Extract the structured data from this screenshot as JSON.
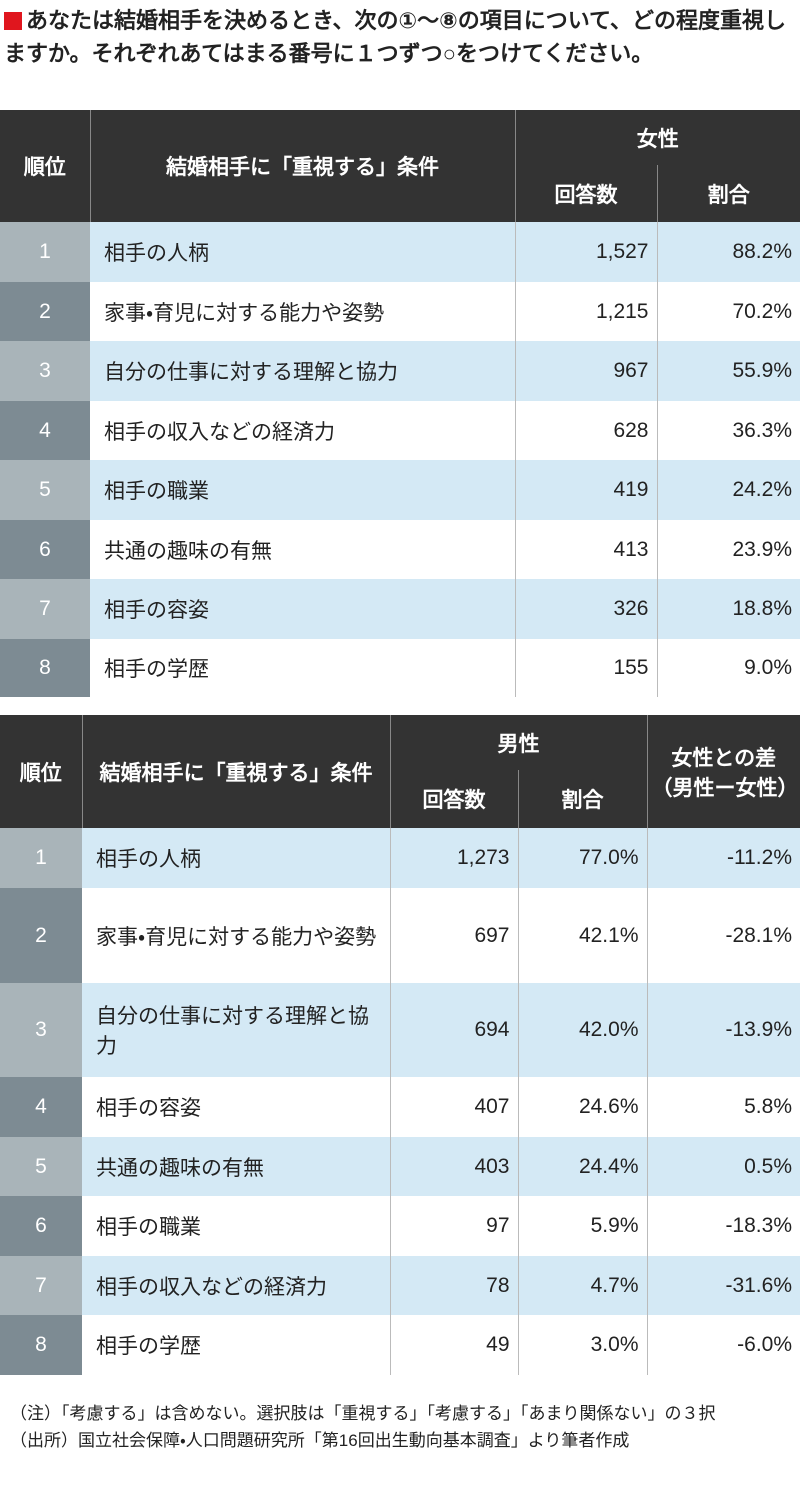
{
  "header": {
    "title": "あなたは結婚相手を決めるとき、次の①～⑧の項目について、どの程度重視しますか。それぞれあてはまる番号に１つずつ○をつけてください。"
  },
  "table1": {
    "head": {
      "rank": "順位",
      "condition": "結婚相手に「重視する」条件",
      "group": "女性",
      "count": "回答数",
      "ratio": "割合"
    },
    "rows": [
      [
        "1",
        "相手の人柄",
        "1,527",
        "88.2%"
      ],
      [
        "2",
        "家事・育児に対する能力や姿勢",
        "1,215",
        "70.2%"
      ],
      [
        "3",
        "自分の仕事に対する理解と協力",
        "967",
        "55.9%"
      ],
      [
        "4",
        "相手の収入などの経済力",
        "628",
        "36.3%"
      ],
      [
        "5",
        "相手の職業",
        "419",
        "24.2%"
      ],
      [
        "6",
        "共通の趣味の有無",
        "413",
        "23.9%"
      ],
      [
        "7",
        "相手の容姿",
        "326",
        "18.8%"
      ],
      [
        "8",
        "相手の学歴",
        "155",
        "9.0%"
      ]
    ]
  },
  "table2": {
    "head": {
      "rank": "順位",
      "condition": "結婚相手に「重視する」条件",
      "group": "男性",
      "count": "回答数",
      "ratio": "割合",
      "diff": "女性との差（男性ー女性）"
    },
    "rows": [
      [
        "1",
        "相手の人柄",
        "1,273",
        "77.0%",
        "-11.2%"
      ],
      [
        "2",
        "家事・育児に対する能力や姿勢",
        "697",
        "42.1%",
        "-28.1%"
      ],
      [
        "3",
        "自分の仕事に対する理解と協力",
        "694",
        "42.0%",
        "-13.9%"
      ],
      [
        "4",
        "相手の容姿",
        "407",
        "24.6%",
        "5.8%"
      ],
      [
        "5",
        "共通の趣味の有無",
        "403",
        "24.4%",
        "0.5%"
      ],
      [
        "6",
        "相手の職業",
        "97",
        "5.9%",
        "-18.3%"
      ],
      [
        "7",
        "相手の収入などの経済力",
        "78",
        "4.7%",
        "-31.6%"
      ],
      [
        "8",
        "相手の学歴",
        "49",
        "3.0%",
        "-6.0%"
      ]
    ]
  },
  "notes": [
    "（注）「考慮する」は含めない。選択肢は「重視する」「考慮する」「あまり関係ない」の３択",
    "（出所）国立社会保障・人口問題研究所「第16回出生動向基本調査」より筆者作成"
  ]
}
